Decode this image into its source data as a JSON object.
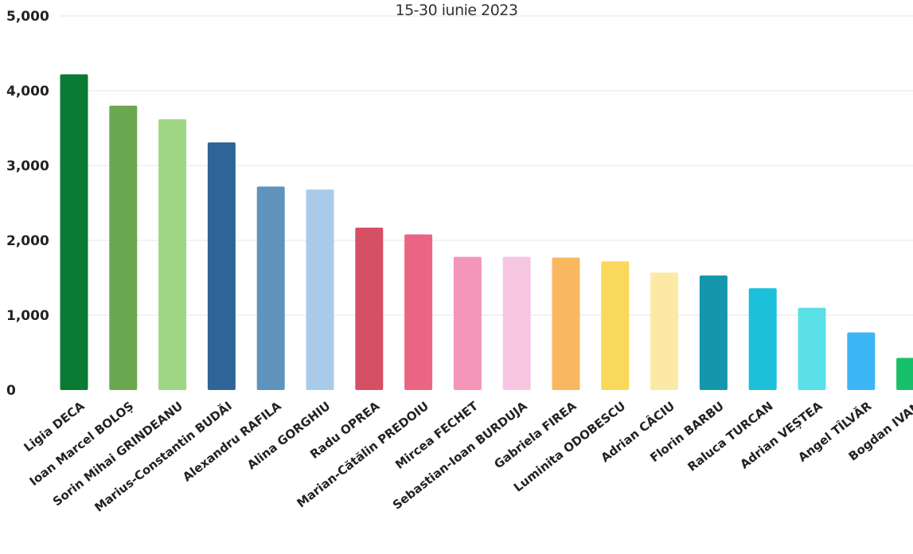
{
  "chart_data": {
    "type": "bar",
    "subtitle": "15-30 iunie 2023",
    "ylim": [
      0,
      5000
    ],
    "yticks": [
      "0",
      "1,000",
      "2,000",
      "3,000",
      "4,000",
      "5,000"
    ],
    "grid": true,
    "categories": [
      "Ligia DECA",
      "Ioan Marcel BOLOȘ",
      "Sorin Mihai GRINDEANU",
      "Marius-Constantin BUDĂI",
      "Alexandru RAFILA",
      "Alina GORGHIU",
      "Radu OPREA",
      "Marian-Cătălin PREDOIU",
      "Mircea FECHET",
      "Sebastian-Ioan BURDUJA",
      "Gabriela FIREA",
      "Luminita ODOBESCU",
      "Adrian CÂCIU",
      "Florin BARBU",
      "Raluca TURCAN",
      "Adrian VEȘTEA",
      "Angel TÎLVĂR",
      "Bogdan IVAN"
    ],
    "values": [
      4220,
      3800,
      3620,
      3310,
      2720,
      2680,
      2170,
      2080,
      1780,
      1780,
      1770,
      1720,
      1570,
      1530,
      1360,
      1100,
      770,
      430
    ],
    "colors": [
      "#0b7a35",
      "#6aa84f",
      "#9fd683",
      "#2d6596",
      "#5e93bd",
      "#a9cbe9",
      "#d64f64",
      "#ea6584",
      "#f495ba",
      "#f6c6e2",
      "#f9b85f",
      "#f9d85c",
      "#fde9a6",
      "#1496ac",
      "#1cc0db",
      "#5ce0e8",
      "#3db6f7",
      "#19c06a"
    ]
  }
}
